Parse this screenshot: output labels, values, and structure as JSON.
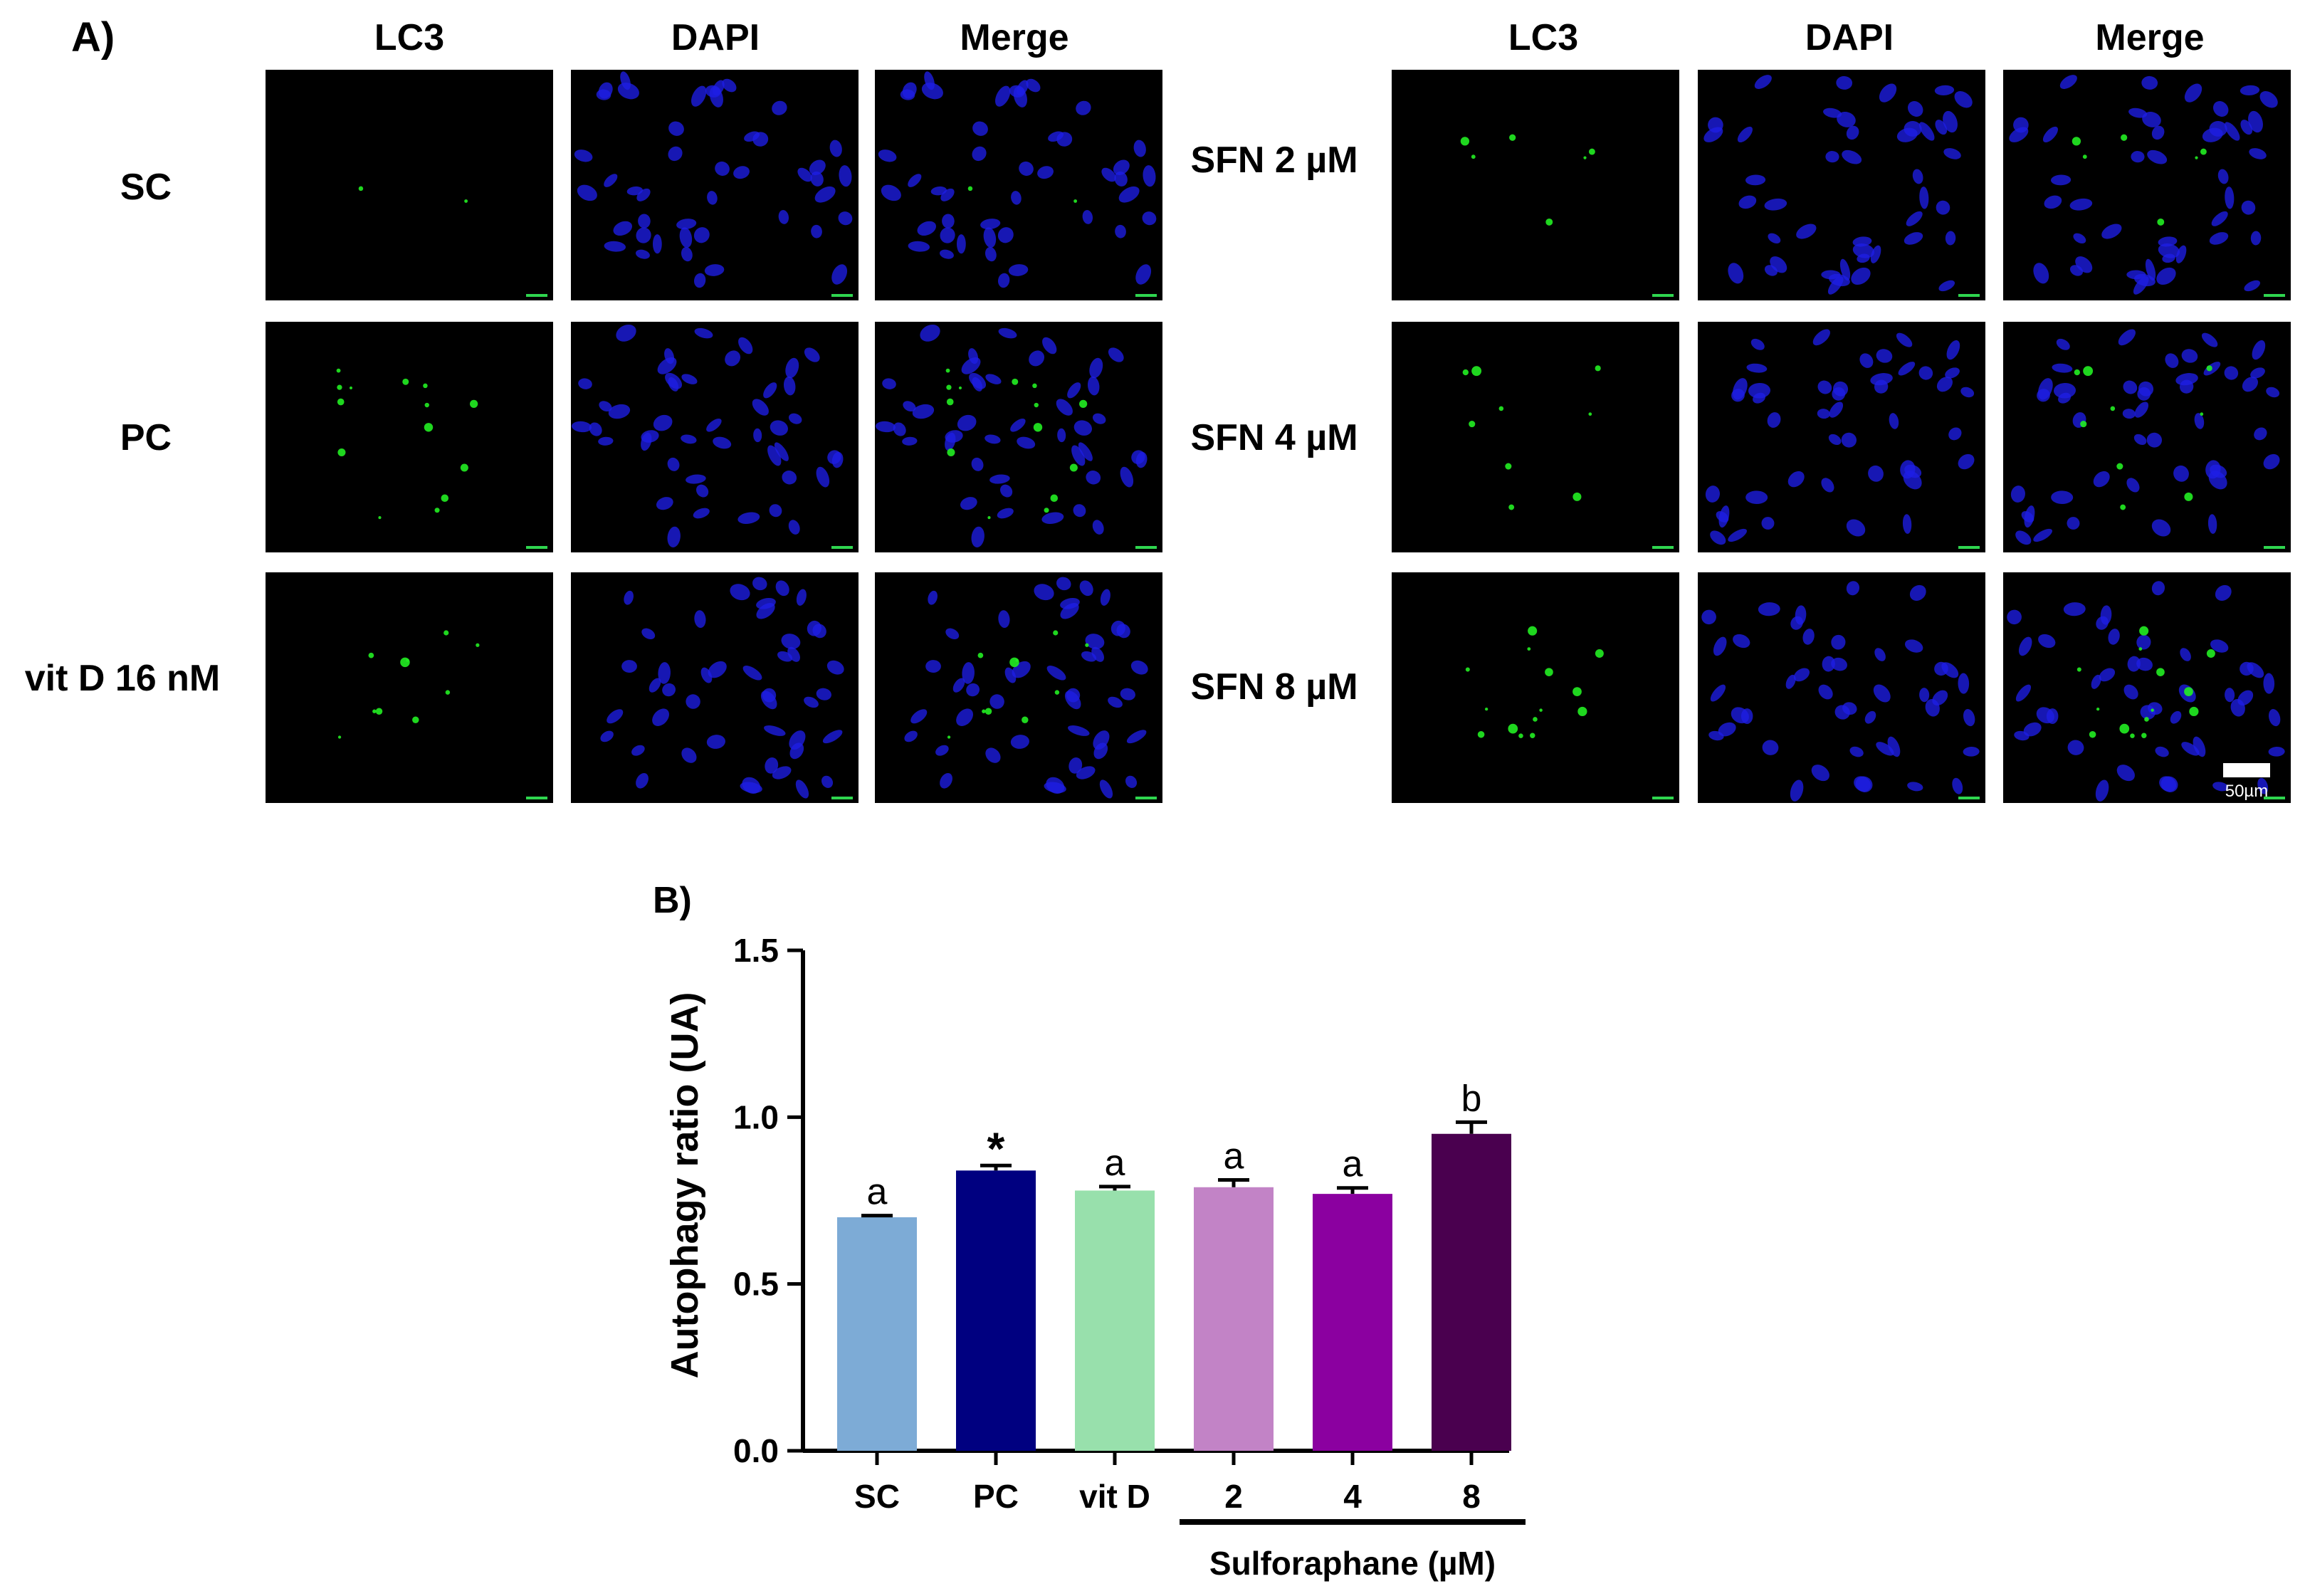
{
  "panel_a": {
    "label": "A)",
    "left_columns": [
      "LC3",
      "DAPI",
      "Merge"
    ],
    "right_columns": [
      "LC3",
      "DAPI",
      "Merge"
    ],
    "left_rows": [
      "SC",
      "PC",
      "vit D 16 nM"
    ],
    "right_rows": [
      "SFN 2 µM",
      "SFN 4 µM",
      "SFN 8 µM"
    ],
    "scale_bar_label": "50µm",
    "colors": {
      "lc3_channel": "#22ee22",
      "dapi_channel": "#1e1ee6",
      "background": "#000000"
    }
  },
  "chart_data": {
    "type": "bar",
    "panel_label": "B)",
    "title": "",
    "xlabel": "",
    "ylabel": "Autophagy ratio (UA)",
    "ylim": [
      0,
      1.5
    ],
    "yticks": [
      "0.0",
      "0.5",
      "1.0",
      "1.5"
    ],
    "ytick_values": [
      0,
      0.5,
      1.0,
      1.5
    ],
    "categories": [
      "SC",
      "PC",
      "vit D",
      "2",
      "4",
      "8"
    ],
    "values": [
      0.7,
      0.84,
      0.78,
      0.79,
      0.77,
      0.95
    ],
    "errors": [
      0.005,
      0.015,
      0.012,
      0.022,
      0.018,
      0.035
    ],
    "annotations": [
      "a",
      "*",
      "a",
      "a",
      "a",
      "b"
    ],
    "colors": [
      "#7dabd6",
      "#000080",
      "#98e0ac",
      "#c283c6",
      "#8b00a0",
      "#4a004f"
    ],
    "group_bracket": {
      "label": "Sulforaphane (µM)",
      "from_index": 3,
      "to_index": 5
    },
    "grid": false,
    "legend": "none"
  }
}
